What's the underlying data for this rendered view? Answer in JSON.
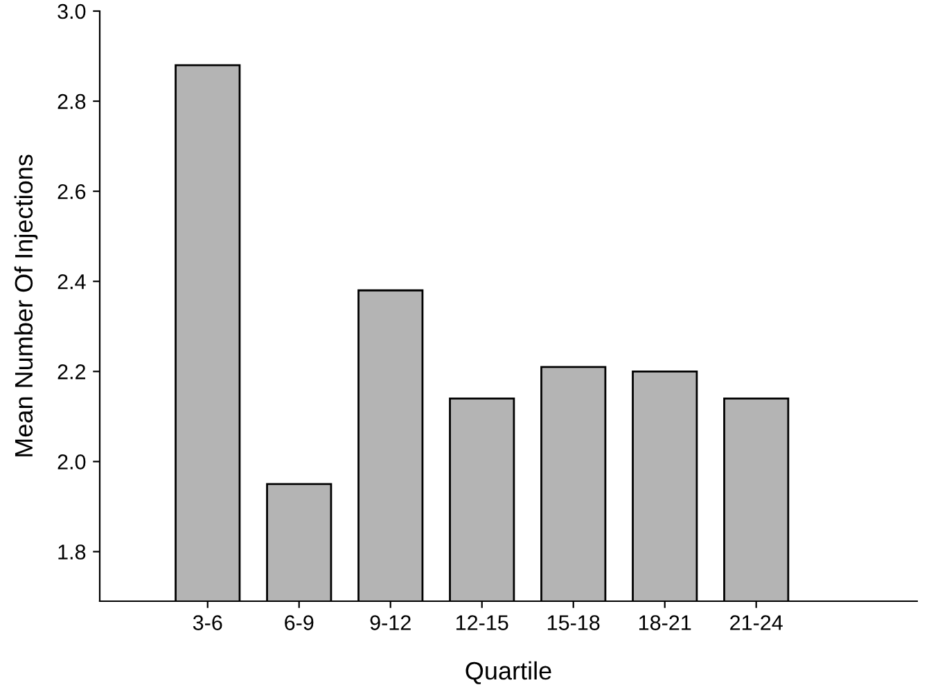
{
  "chart_data": {
    "type": "bar",
    "xlabel": "Quartile",
    "ylabel": "Mean Number Of Injections",
    "categories": [
      "3-6",
      "6-9",
      "9-12",
      "12-15",
      "15-18",
      "18-21",
      "21-24"
    ],
    "values": [
      2.88,
      1.95,
      2.38,
      2.14,
      2.21,
      2.2,
      2.14
    ],
    "color": "#b4b4b4",
    "ylim": [
      1.69,
      3.0
    ],
    "yticks": [
      {
        "value": 1.8,
        "label": "1.8"
      },
      {
        "value": 2.0,
        "label": "2.0"
      },
      {
        "value": 2.2,
        "label": "2.2"
      },
      {
        "value": 2.4,
        "label": "2.4"
      },
      {
        "value": 2.6,
        "label": "2.6"
      },
      {
        "value": 2.8,
        "label": "2.8"
      },
      {
        "value": 3.0,
        "label": "3.0"
      }
    ],
    "grid": false
  }
}
